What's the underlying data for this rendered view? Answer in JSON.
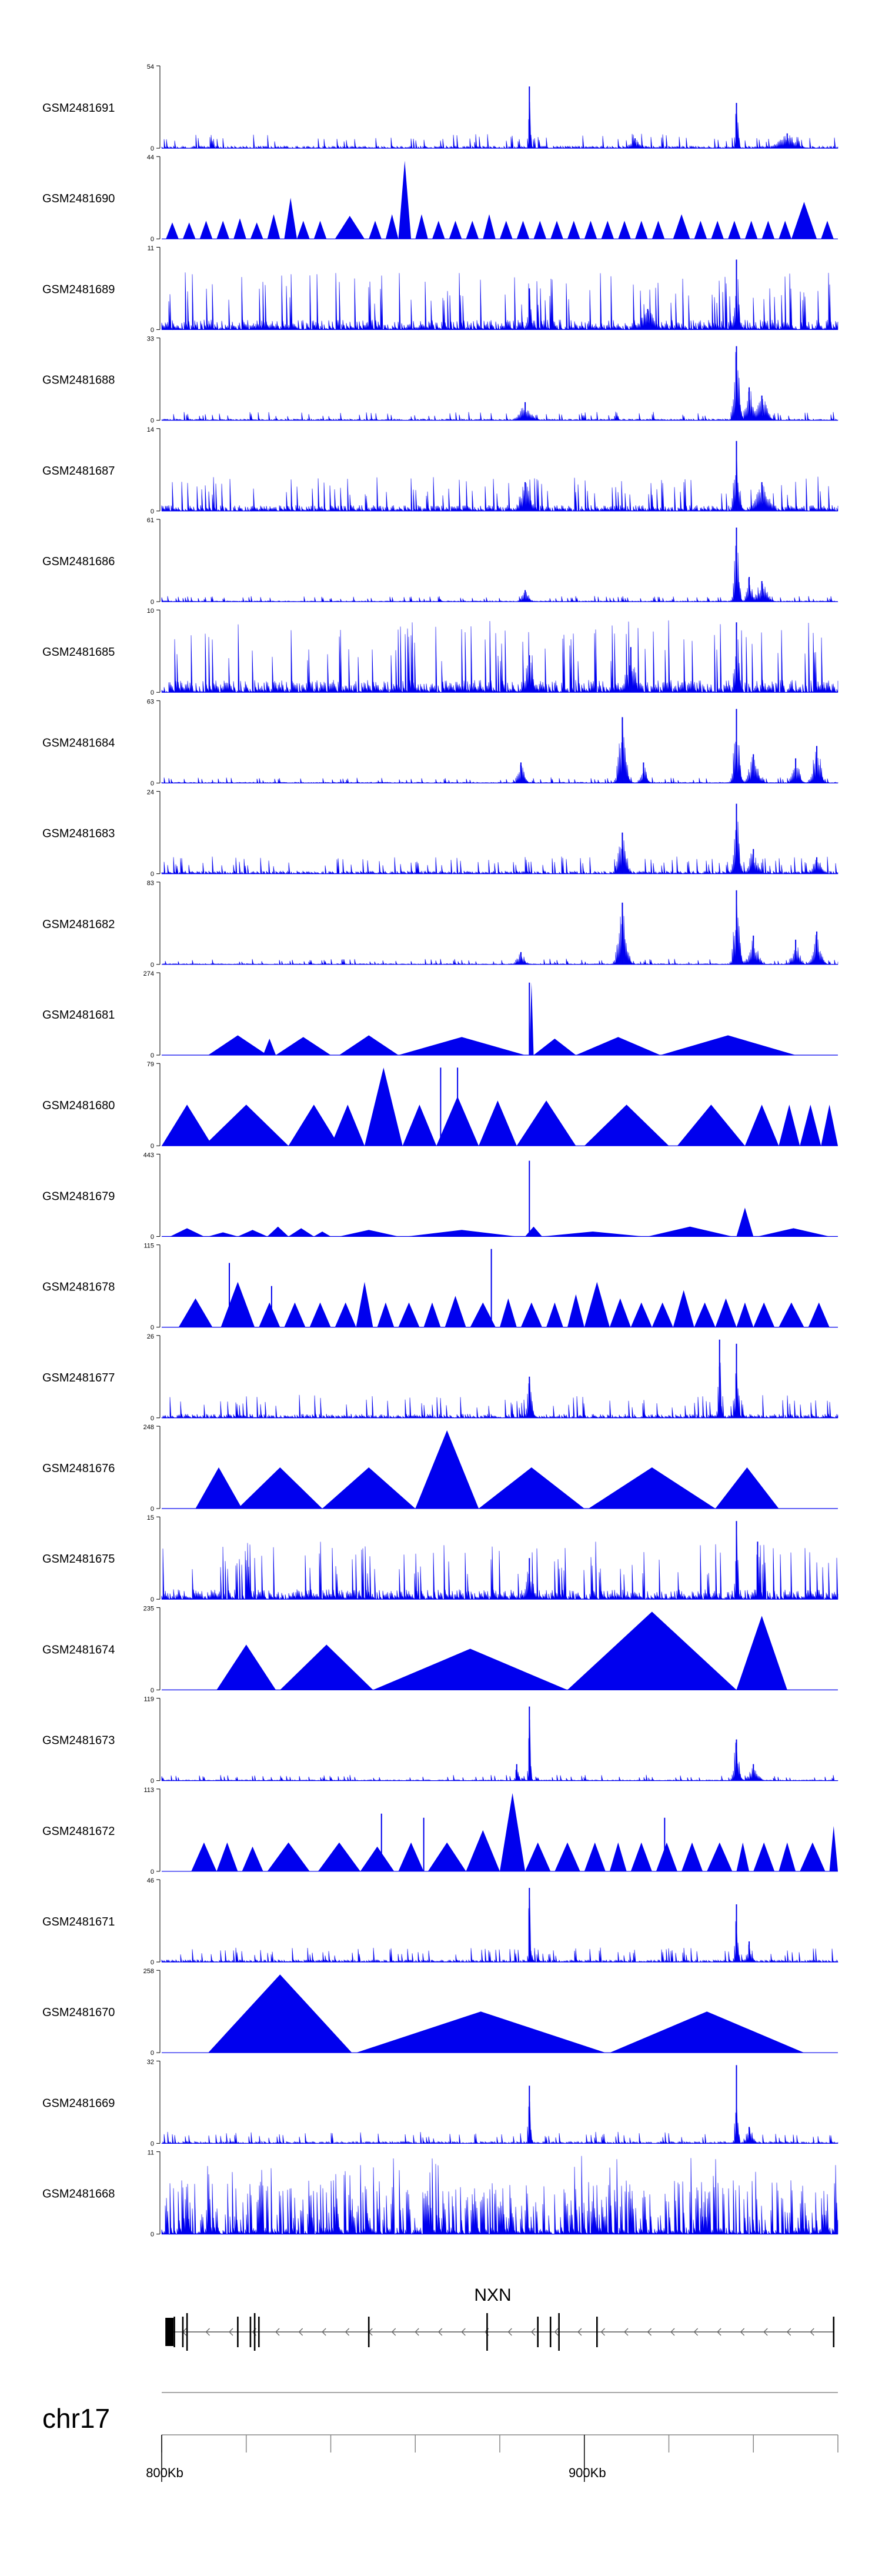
{
  "chart_data": {
    "type": "area",
    "chromosome": "chr17",
    "gene": "NXN",
    "xlim": [
      800,
      960
    ],
    "x_unit": "Kb",
    "x_tick_labels": [
      "800Kb",
      "900Kb"
    ],
    "x_tick_label_values": [
      800,
      900
    ],
    "x_minor_ticks": [
      800,
      820,
      840,
      860,
      880,
      900,
      920,
      940,
      960
    ],
    "tracks": [
      {
        "name": "GSM2481691",
        "ymax": 54,
        "style": "spiky",
        "base": 0.05,
        "peaks": [
          [
            887,
            0.75,
            0.25
          ],
          [
            936,
            0.55,
            0.35
          ],
          [
            912,
            0.12,
            1.2
          ],
          [
            948,
            0.18,
            2.0
          ]
        ]
      },
      {
        "name": "GSM2481690",
        "ymax": 44,
        "style": "tri",
        "segs": [
          [
            801,
            804,
            0.2
          ],
          [
            805,
            808,
            0.2
          ],
          [
            809,
            812,
            0.22
          ],
          [
            813,
            816,
            0.22
          ],
          [
            817,
            820,
            0.25
          ],
          [
            821,
            824,
            0.2
          ],
          [
            825,
            828,
            0.3
          ],
          [
            829,
            832,
            0.5
          ],
          [
            832,
            835,
            0.22
          ],
          [
            836,
            839,
            0.22
          ],
          [
            841,
            848,
            0.28
          ],
          [
            849,
            852,
            0.22
          ],
          [
            853,
            856,
            0.3
          ],
          [
            856,
            859,
            0.95
          ],
          [
            860,
            863,
            0.3
          ],
          [
            864,
            867,
            0.22
          ],
          [
            868,
            871,
            0.22
          ],
          [
            872,
            875,
            0.22
          ],
          [
            876,
            879,
            0.3
          ],
          [
            880,
            883,
            0.22
          ],
          [
            884,
            887,
            0.22
          ],
          [
            888,
            891,
            0.22
          ],
          [
            892,
            895,
            0.22
          ],
          [
            896,
            899,
            0.22
          ],
          [
            900,
            903,
            0.22
          ],
          [
            904,
            907,
            0.22
          ],
          [
            908,
            911,
            0.22
          ],
          [
            912,
            915,
            0.22
          ],
          [
            916,
            919,
            0.22
          ],
          [
            921,
            925,
            0.3
          ],
          [
            926,
            929,
            0.22
          ],
          [
            930,
            933,
            0.22
          ],
          [
            934,
            937,
            0.22
          ],
          [
            938,
            941,
            0.22
          ],
          [
            942,
            945,
            0.22
          ],
          [
            946,
            949,
            0.22
          ],
          [
            949,
            955,
            0.45
          ],
          [
            956,
            959,
            0.22
          ]
        ]
      },
      {
        "name": "GSM2481689",
        "ymax": 11,
        "style": "spiky",
        "base": 0.2,
        "peaks": [
          [
            887,
            0.5,
            0.4
          ],
          [
            936,
            0.85,
            0.45
          ],
          [
            915,
            0.25,
            1.5
          ]
        ]
      },
      {
        "name": "GSM2481688",
        "ymax": 33,
        "style": "spiky",
        "base": 0.03,
        "peaks": [
          [
            886,
            0.22,
            1.2
          ],
          [
            936,
            0.9,
            0.6
          ],
          [
            939,
            0.4,
            0.9
          ],
          [
            942,
            0.3,
            1.2
          ]
        ]
      },
      {
        "name": "GSM2481687",
        "ymax": 14,
        "style": "spiky",
        "base": 0.12,
        "peaks": [
          [
            886,
            0.35,
            1.2
          ],
          [
            936,
            0.85,
            0.6
          ],
          [
            942,
            0.35,
            1.5
          ]
        ]
      },
      {
        "name": "GSM2481686",
        "ymax": 61,
        "style": "spiky",
        "base": 0.02,
        "peaks": [
          [
            886,
            0.14,
            0.8
          ],
          [
            936,
            0.9,
            0.5
          ],
          [
            939,
            0.3,
            0.6
          ],
          [
            942,
            0.25,
            1.2
          ]
        ]
      },
      {
        "name": "GSM2481685",
        "ymax": 10,
        "style": "spiky",
        "base": 0.25,
        "peaks": [
          [
            887,
            0.45,
            0.8
          ],
          [
            911,
            0.55,
            1.0
          ],
          [
            936,
            0.85,
            0.5
          ]
        ]
      },
      {
        "name": "GSM2481684",
        "ymax": 63,
        "style": "spiky",
        "base": 0.02,
        "peaks": [
          [
            885,
            0.25,
            0.8
          ],
          [
            909,
            0.8,
            0.8
          ],
          [
            914,
            0.25,
            0.7
          ],
          [
            936,
            0.9,
            0.6
          ],
          [
            940,
            0.35,
            1.0
          ],
          [
            950,
            0.3,
            0.8
          ],
          [
            955,
            0.45,
            0.9
          ]
        ]
      },
      {
        "name": "GSM2481683",
        "ymax": 24,
        "style": "spiky",
        "base": 0.06,
        "peaks": [
          [
            909,
            0.5,
            0.9
          ],
          [
            936,
            0.85,
            0.6
          ],
          [
            940,
            0.3,
            1.0
          ],
          [
            955,
            0.2,
            1.0
          ]
        ]
      },
      {
        "name": "GSM2481682",
        "ymax": 83,
        "style": "spiky",
        "base": 0.02,
        "peaks": [
          [
            885,
            0.15,
            0.8
          ],
          [
            909,
            0.75,
            0.9
          ],
          [
            936,
            0.9,
            0.6
          ],
          [
            940,
            0.35,
            1.0
          ],
          [
            950,
            0.3,
            0.8
          ],
          [
            955,
            0.4,
            0.9
          ]
        ]
      },
      {
        "name": "GSM2481681",
        "ymax": 274,
        "style": "tri",
        "segs": [
          [
            811,
            825,
            0.24
          ],
          [
            824,
            827,
            0.2
          ],
          [
            827,
            840,
            0.22
          ],
          [
            842,
            856,
            0.24
          ],
          [
            856,
            886,
            0.22
          ],
          [
            887,
            888,
            0.88
          ],
          [
            888,
            898,
            0.2
          ],
          [
            898,
            918,
            0.22
          ],
          [
            918,
            950,
            0.24
          ]
        ],
        "spike": [
          887,
          0.88
        ]
      },
      {
        "name": "GSM2481680",
        "ymax": 79,
        "style": "tri",
        "segs": [
          [
            800,
            812,
            0.5
          ],
          [
            810,
            830,
            0.5
          ],
          [
            830,
            842,
            0.5
          ],
          [
            840,
            848,
            0.5
          ],
          [
            848,
            857,
            0.95
          ],
          [
            857,
            865,
            0.5
          ],
          [
            865,
            875,
            0.6
          ],
          [
            875,
            884,
            0.55
          ],
          [
            884,
            898,
            0.55
          ],
          [
            900,
            920,
            0.5
          ],
          [
            922,
            938,
            0.5
          ],
          [
            938,
            946,
            0.5
          ],
          [
            946,
            951,
            0.5
          ],
          [
            951,
            956,
            0.5
          ],
          [
            956,
            960,
            0.5
          ]
        ],
        "spikes": [
          [
            866,
            0.95
          ],
          [
            870,
            0.95
          ]
        ]
      },
      {
        "name": "GSM2481679",
        "ymax": 443,
        "style": "tri",
        "segs": [
          [
            802,
            810,
            0.1
          ],
          [
            811,
            818,
            0.05
          ],
          [
            818,
            825,
            0.08
          ],
          [
            825,
            830,
            0.12
          ],
          [
            830,
            836,
            0.1
          ],
          [
            836,
            840,
            0.06
          ],
          [
            842,
            856,
            0.08
          ],
          [
            858,
            884,
            0.08
          ],
          [
            886,
            890,
            0.12
          ],
          [
            890,
            914,
            0.06
          ],
          [
            915,
            935,
            0.12
          ],
          [
            936,
            940,
            0.35
          ],
          [
            941,
            958,
            0.1
          ]
        ],
        "spike": [
          887,
          0.92
        ]
      },
      {
        "name": "GSM2481678",
        "ymax": 115,
        "style": "tri",
        "segs": [
          [
            804,
            812,
            0.35
          ],
          [
            814,
            822,
            0.55
          ],
          [
            823,
            828,
            0.3
          ],
          [
            829,
            834,
            0.3
          ],
          [
            835,
            840,
            0.3
          ],
          [
            841,
            846,
            0.3
          ],
          [
            846,
            850,
            0.55
          ],
          [
            851,
            855,
            0.3
          ],
          [
            856,
            861,
            0.3
          ],
          [
            862,
            866,
            0.3
          ],
          [
            867,
            872,
            0.38
          ],
          [
            873,
            879,
            0.3
          ],
          [
            880,
            884,
            0.35
          ],
          [
            885,
            890,
            0.3
          ],
          [
            891,
            895,
            0.3
          ],
          [
            896,
            900,
            0.4
          ],
          [
            900,
            906,
            0.55
          ],
          [
            906,
            911,
            0.35
          ],
          [
            911,
            916,
            0.3
          ],
          [
            916,
            921,
            0.3
          ],
          [
            921,
            926,
            0.45
          ],
          [
            926,
            931,
            0.3
          ],
          [
            931,
            936,
            0.35
          ],
          [
            936,
            940,
            0.3
          ],
          [
            940,
            945,
            0.3
          ],
          [
            946,
            952,
            0.3
          ],
          [
            953,
            958,
            0.3
          ]
        ],
        "spikes": [
          [
            816,
            0.78
          ],
          [
            878,
            0.95
          ],
          [
            826,
            0.5
          ]
        ]
      },
      {
        "name": "GSM2481677",
        "ymax": 26,
        "style": "spiky",
        "base": 0.08,
        "peaks": [
          [
            887,
            0.5,
            0.5
          ],
          [
            932,
            0.95,
            0.3
          ],
          [
            936,
            0.9,
            0.3
          ]
        ]
      },
      {
        "name": "GSM2481676",
        "ymax": 248,
        "style": "tri",
        "segs": [
          [
            808,
            819,
            0.5
          ],
          [
            818,
            838,
            0.5
          ],
          [
            838,
            860,
            0.5
          ],
          [
            860,
            875,
            0.95
          ],
          [
            875,
            900,
            0.5
          ],
          [
            901,
            931,
            0.5
          ],
          [
            931,
            946,
            0.5
          ]
        ]
      },
      {
        "name": "GSM2481675",
        "ymax": 15,
        "style": "spiky",
        "base": 0.2,
        "peaks": [
          [
            936,
            0.95,
            0.3
          ],
          [
            941,
            0.7,
            0.3
          ],
          [
            887,
            0.5,
            0.8
          ]
        ]
      },
      {
        "name": "GSM2481674",
        "ymax": 235,
        "style": "tri",
        "segs": [
          [
            813,
            827,
            0.55
          ],
          [
            828,
            850,
            0.55
          ],
          [
            850,
            896,
            0.5
          ],
          [
            896,
            936,
            0.95
          ],
          [
            936,
            948,
            0.9
          ]
        ]
      },
      {
        "name": "GSM2481673",
        "ymax": 119,
        "style": "spiky",
        "base": 0.02,
        "peaks": [
          [
            887,
            0.9,
            0.25
          ],
          [
            884,
            0.2,
            0.3
          ],
          [
            936,
            0.5,
            0.6
          ],
          [
            940,
            0.2,
            1.0
          ]
        ]
      },
      {
        "name": "GSM2481672",
        "ymax": 113,
        "style": "tri",
        "segs": [
          [
            807,
            813,
            0.35
          ],
          [
            813,
            818,
            0.35
          ],
          [
            819,
            824,
            0.3
          ],
          [
            825,
            835,
            0.35
          ],
          [
            837,
            847,
            0.35
          ],
          [
            847,
            855,
            0.3
          ],
          [
            856,
            862,
            0.35
          ],
          [
            863,
            872,
            0.35
          ],
          [
            872,
            880,
            0.5
          ],
          [
            880,
            886,
            0.95
          ],
          [
            886,
            892,
            0.35
          ],
          [
            893,
            899,
            0.35
          ],
          [
            900,
            905,
            0.35
          ],
          [
            906,
            910,
            0.35
          ],
          [
            911,
            916,
            0.35
          ],
          [
            917,
            922,
            0.35
          ],
          [
            923,
            928,
            0.35
          ],
          [
            929,
            935,
            0.35
          ],
          [
            936,
            939,
            0.35
          ],
          [
            940,
            945,
            0.35
          ],
          [
            946,
            950,
            0.35
          ],
          [
            951,
            957,
            0.35
          ],
          [
            958,
            960,
            0.55
          ]
        ],
        "spikes": [
          [
            852,
            0.7
          ],
          [
            862,
            0.65
          ],
          [
            919,
            0.65
          ]
        ]
      },
      {
        "name": "GSM2481671",
        "ymax": 46,
        "style": "spiky",
        "base": 0.05,
        "peaks": [
          [
            887,
            0.9,
            0.25
          ],
          [
            936,
            0.7,
            0.35
          ],
          [
            939,
            0.25,
            0.6
          ]
        ]
      },
      {
        "name": "GSM2481670",
        "ymax": 258,
        "style": "tri",
        "segs": [
          [
            811,
            845,
            0.95
          ],
          [
            846,
            905,
            0.5
          ],
          [
            906,
            952,
            0.5
          ]
        ]
      },
      {
        "name": "GSM2481669",
        "ymax": 32,
        "style": "spiky",
        "base": 0.04,
        "peaks": [
          [
            887,
            0.7,
            0.3
          ],
          [
            936,
            0.95,
            0.3
          ],
          [
            939,
            0.2,
            0.8
          ]
        ]
      },
      {
        "name": "GSM2481668",
        "ymax": 11,
        "style": "dense",
        "base": 0.55,
        "peaks": []
      }
    ],
    "axis_min_label": "0",
    "gene_model": {
      "name": "NXN",
      "strand": "-",
      "start": 801,
      "end": 959,
      "exons": [
        801,
        803,
        805,
        806,
        818,
        821,
        822,
        823,
        849,
        877,
        889,
        892,
        894,
        903,
        959
      ]
    }
  }
}
